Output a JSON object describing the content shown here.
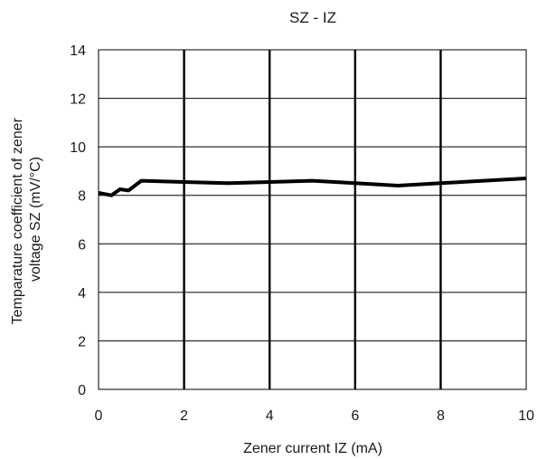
{
  "chart_data": {
    "type": "line",
    "title": "SZ - IZ",
    "xlabel": "Zener current IZ (mA)",
    "ylabel_lines": [
      "Temparature coefficient of zener",
      "voltage SZ (mV/°C)"
    ],
    "xlim": [
      0,
      10
    ],
    "ylim": [
      0,
      14
    ],
    "x_ticks": [
      0,
      2,
      4,
      6,
      8,
      10
    ],
    "y_ticks": [
      0,
      2,
      4,
      6,
      8,
      10,
      12,
      14
    ],
    "grid": {
      "vertical": true,
      "horizontal": true
    },
    "series": [
      {
        "color": "#000000",
        "x": [
          0,
          0.3,
          0.5,
          0.7,
          1.0,
          2.0,
          3.0,
          4.0,
          5.0,
          6.0,
          7.0,
          8.0,
          9.0,
          10.0
        ],
        "y": [
          8.1,
          8.0,
          8.25,
          8.2,
          8.6,
          8.55,
          8.5,
          8.55,
          8.6,
          8.5,
          8.4,
          8.5,
          8.6,
          8.7
        ]
      }
    ]
  }
}
